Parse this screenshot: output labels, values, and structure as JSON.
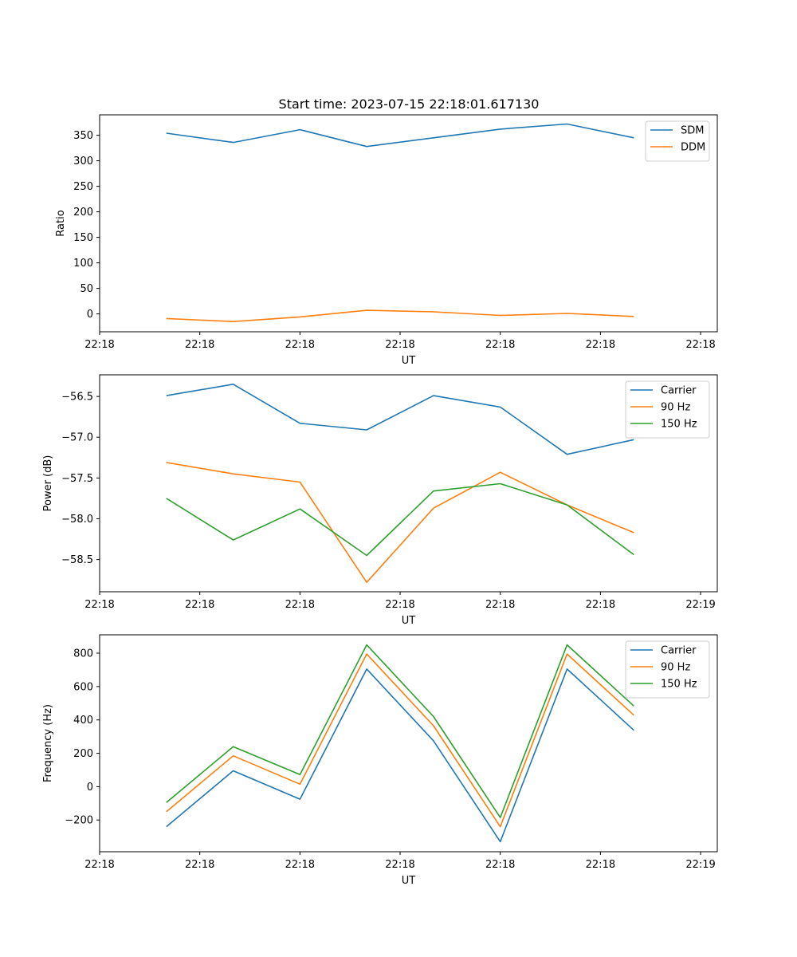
{
  "figure": {
    "title": "Start time: 2023-07-15 22:18:01.617130"
  },
  "colors": {
    "series": [
      "#1f77b4",
      "#ff7f0e",
      "#2ca02c"
    ],
    "axes": "#000000",
    "legend_border": "#cccccc",
    "background": "#ffffff"
  },
  "chart_data": [
    {
      "type": "line",
      "title": "Start time: 2023-07-15 22:18:01.617130",
      "xlabel": "UT",
      "ylabel": "Ratio",
      "x": [
        1,
        2,
        3,
        4,
        5,
        6,
        7,
        8
      ],
      "xlim": [
        0,
        9.25
      ],
      "x_ticks": [
        0.0,
        1.5,
        3.0,
        4.5,
        6.0,
        7.5,
        9.0
      ],
      "x_tick_labels": [
        "22:18",
        "22:18",
        "22:18",
        "22:18",
        "22:18",
        "22:18",
        "22:18"
      ],
      "ylim": [
        -35,
        390
      ],
      "y_ticks": [
        0,
        50,
        100,
        150,
        200,
        250,
        300,
        350
      ],
      "y_tick_labels": [
        "0",
        "50",
        "100",
        "150",
        "200",
        "250",
        "300",
        "350"
      ],
      "legend": "top-right",
      "series": [
        {
          "name": "SDM",
          "values": [
            354,
            336,
            361,
            328,
            345,
            362,
            372,
            345
          ]
        },
        {
          "name": "DDM",
          "values": [
            -9,
            -15,
            -6,
            7,
            4,
            -3,
            1,
            -5
          ]
        }
      ]
    },
    {
      "type": "line",
      "title": "",
      "xlabel": "UT",
      "ylabel": "Power (dB)",
      "x": [
        1,
        2,
        3,
        4,
        5,
        6,
        7,
        8
      ],
      "xlim": [
        0,
        9.25
      ],
      "x_ticks": [
        0.0,
        1.5,
        3.0,
        4.5,
        6.0,
        7.5,
        9.0
      ],
      "x_tick_labels": [
        "22:18",
        "22:18",
        "22:18",
        "22:18",
        "22:18",
        "22:18",
        "22:19"
      ],
      "ylim": [
        -58.895,
        -56.235
      ],
      "y_ticks": [
        -56.5,
        -57.0,
        -57.5,
        -58.0,
        -58.5
      ],
      "y_tick_labels": [
        "−56.5",
        "−57.0",
        "−57.5",
        "−58.0",
        "−58.5"
      ],
      "legend": "top-right",
      "series": [
        {
          "name": "Carrier",
          "values": [
            -56.49,
            -56.35,
            -56.83,
            -56.91,
            -56.49,
            -56.63,
            -57.21,
            -57.03
          ]
        },
        {
          "name": "90 Hz",
          "values": [
            -57.31,
            -57.45,
            -57.55,
            -58.78,
            -57.87,
            -57.43,
            -57.83,
            -58.17
          ]
        },
        {
          "name": "150 Hz",
          "values": [
            -57.75,
            -58.26,
            -57.88,
            -58.45,
            -57.66,
            -57.57,
            -57.83,
            -58.44
          ]
        }
      ]
    },
    {
      "type": "line",
      "title": "",
      "xlabel": "UT",
      "ylabel": "Frequency (Hz)",
      "x": [
        1,
        2,
        3,
        4,
        5,
        6,
        7,
        8
      ],
      "xlim": [
        0,
        9.25
      ],
      "x_ticks": [
        0.0,
        1.5,
        3.0,
        4.5,
        6.0,
        7.5,
        9.0
      ],
      "x_tick_labels": [
        "22:18",
        "22:18",
        "22:18",
        "22:18",
        "22:18",
        "22:18",
        "22:19"
      ],
      "ylim": [
        -390,
        910
      ],
      "y_ticks": [
        -200,
        0,
        200,
        400,
        600,
        800
      ],
      "y_tick_labels": [
        "−200",
        "0",
        "200",
        "400",
        "600",
        "800"
      ],
      "legend": "top-right",
      "series": [
        {
          "name": "Carrier",
          "values": [
            -240,
            95,
            -75,
            705,
            275,
            -330,
            705,
            338
          ]
        },
        {
          "name": "90 Hz",
          "values": [
            -150,
            185,
            15,
            795,
            365,
            -240,
            795,
            428
          ]
        },
        {
          "name": "150 Hz",
          "values": [
            -95,
            240,
            72,
            850,
            420,
            -185,
            850,
            483
          ]
        }
      ]
    }
  ]
}
